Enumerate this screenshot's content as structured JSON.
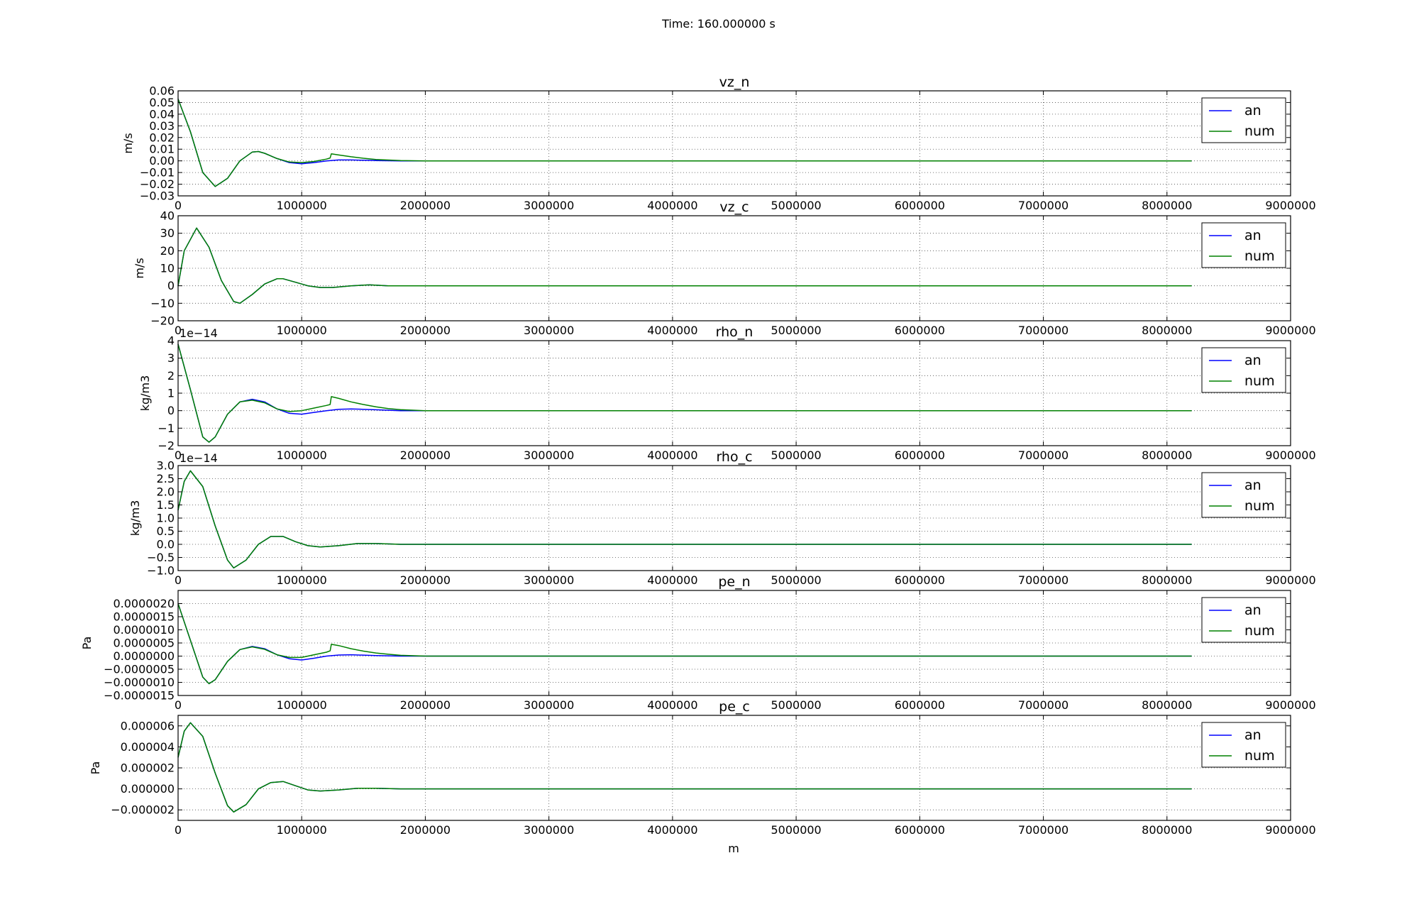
{
  "figure": {
    "suptitle": "Time: 160.000000 s",
    "xlabel": "m",
    "colors": {
      "an": "#0000ff",
      "num": "#008000"
    }
  },
  "chart_data": [
    {
      "type": "line",
      "title": "vz_n",
      "ylabel": "m/s",
      "offset_text": "",
      "xlim": [
        0,
        9000000
      ],
      "ylim": [
        -0.03,
        0.06
      ],
      "xticks": [
        0,
        1000000,
        2000000,
        3000000,
        4000000,
        5000000,
        6000000,
        7000000,
        8000000,
        9000000
      ],
      "xtick_labels": [
        "0",
        "1000000",
        "2000000",
        "3000000",
        "4000000",
        "5000000",
        "6000000",
        "7000000",
        "8000000",
        "9000000"
      ],
      "yticks": [
        -0.03,
        -0.02,
        -0.01,
        0.0,
        0.01,
        0.02,
        0.03,
        0.04,
        0.05,
        0.06
      ],
      "ytick_labels": [
        "−0.03",
        "−0.02",
        "−0.01",
        "0.00",
        "0.01",
        "0.02",
        "0.03",
        "0.04",
        "0.05",
        "0.06"
      ],
      "grid": true,
      "legend": "top-right",
      "series": [
        {
          "name": "an",
          "x": [
            0,
            100000,
            200000,
            300000,
            400000,
            500000,
            600000,
            650000,
            700000,
            800000,
            900000,
            1000000,
            1100000,
            1200000,
            1300000,
            1400000,
            1500000,
            1600000,
            1800000,
            2000000,
            8200000
          ],
          "y": [
            0.053,
            0.025,
            -0.01,
            -0.022,
            -0.015,
            0.0,
            0.0075,
            0.008,
            0.0065,
            0.002,
            -0.0015,
            -0.0025,
            -0.0015,
            0.0,
            0.0008,
            0.0008,
            0.0005,
            0.0002,
            0.0,
            0.0,
            0.0
          ]
        },
        {
          "name": "num",
          "x": [
            0,
            100000,
            200000,
            300000,
            400000,
            500000,
            600000,
            650000,
            700000,
            800000,
            900000,
            1000000,
            1100000,
            1200000,
            1230000,
            1240000,
            1300000,
            1400000,
            1500000,
            1600000,
            1800000,
            2000000,
            8200000
          ],
          "y": [
            0.053,
            0.025,
            -0.01,
            -0.022,
            -0.015,
            0.0,
            0.0075,
            0.008,
            0.0065,
            0.002,
            -0.001,
            -0.0015,
            -0.0005,
            0.0015,
            0.0025,
            0.006,
            0.005,
            0.0035,
            0.0022,
            0.0012,
            0.0003,
            0.0,
            0.0
          ]
        }
      ]
    },
    {
      "type": "line",
      "title": "vz_c",
      "ylabel": "m/s",
      "offset_text": "",
      "xlim": [
        0,
        9000000
      ],
      "ylim": [
        -20,
        40
      ],
      "xticks": [
        0,
        1000000,
        2000000,
        3000000,
        4000000,
        5000000,
        6000000,
        7000000,
        8000000,
        9000000
      ],
      "xtick_labels": [
        "0",
        "1000000",
        "2000000",
        "3000000",
        "4000000",
        "5000000",
        "6000000",
        "7000000",
        "8000000",
        "9000000"
      ],
      "yticks": [
        -20,
        -10,
        0,
        10,
        20,
        30,
        40
      ],
      "ytick_labels": [
        "−20",
        "−10",
        "0",
        "10",
        "20",
        "30",
        "40"
      ],
      "grid": true,
      "legend": "top-right",
      "series": [
        {
          "name": "an",
          "x": [
            0,
            50000,
            150000,
            250000,
            350000,
            450000,
            500000,
            600000,
            700000,
            800000,
            850000,
            950000,
            1050000,
            1150000,
            1250000,
            1400000,
            1550000,
            1700000,
            1900000,
            8200000
          ],
          "y": [
            0,
            20,
            33,
            22,
            3,
            -9,
            -10,
            -5,
            1,
            4,
            4,
            2,
            0,
            -1,
            -1,
            0,
            0.5,
            0,
            0,
            0
          ]
        },
        {
          "name": "num",
          "x": [
            0,
            50000,
            150000,
            250000,
            350000,
            450000,
            500000,
            600000,
            700000,
            800000,
            850000,
            950000,
            1050000,
            1150000,
            1250000,
            1400000,
            1550000,
            1700000,
            1900000,
            8200000
          ],
          "y": [
            0,
            20,
            33,
            22,
            3,
            -9,
            -10,
            -5,
            1,
            4,
            4,
            2,
            0,
            -1,
            -1,
            0,
            0.5,
            0,
            0,
            0
          ]
        }
      ]
    },
    {
      "type": "line",
      "title": "rho_n",
      "ylabel": "kg/m3",
      "offset_text": "1e−14",
      "xlim": [
        0,
        9000000
      ],
      "ylim": [
        -2,
        4
      ],
      "xticks": [
        0,
        1000000,
        2000000,
        3000000,
        4000000,
        5000000,
        6000000,
        7000000,
        8000000,
        9000000
      ],
      "xtick_labels": [
        "0",
        "1000000",
        "2000000",
        "3000000",
        "4000000",
        "5000000",
        "6000000",
        "7000000",
        "8000000",
        "9000000"
      ],
      "yticks": [
        -2,
        -1,
        0,
        1,
        2,
        3,
        4
      ],
      "ytick_labels": [
        "−2",
        "−1",
        "0",
        "1",
        "2",
        "3",
        "4"
      ],
      "grid": true,
      "legend": "top-right",
      "series": [
        {
          "name": "an",
          "x": [
            0,
            100000,
            200000,
            250000,
            300000,
            400000,
            500000,
            600000,
            700000,
            800000,
            900000,
            1000000,
            1100000,
            1200000,
            1300000,
            1400000,
            1600000,
            1800000,
            2000000,
            8200000
          ],
          "y": [
            3.8,
            1.2,
            -1.5,
            -1.8,
            -1.5,
            -0.2,
            0.5,
            0.65,
            0.5,
            0.1,
            -0.15,
            -0.2,
            -0.1,
            0.0,
            0.08,
            0.1,
            0.05,
            0.0,
            0.0,
            0.0
          ]
        },
        {
          "name": "num",
          "x": [
            0,
            100000,
            200000,
            250000,
            300000,
            400000,
            500000,
            600000,
            700000,
            800000,
            900000,
            1000000,
            1100000,
            1200000,
            1230000,
            1240000,
            1300000,
            1400000,
            1500000,
            1600000,
            1700000,
            1800000,
            2000000,
            8200000
          ],
          "y": [
            3.8,
            1.2,
            -1.5,
            -1.8,
            -1.5,
            -0.2,
            0.5,
            0.6,
            0.45,
            0.1,
            -0.05,
            0.0,
            0.15,
            0.3,
            0.35,
            0.8,
            0.7,
            0.5,
            0.35,
            0.22,
            0.12,
            0.06,
            0.0,
            0.0
          ]
        }
      ]
    },
    {
      "type": "line",
      "title": "rho_c",
      "ylabel": "kg/m3",
      "offset_text": "1e−14",
      "xlim": [
        0,
        9000000
      ],
      "ylim": [
        -1.0,
        3.0
      ],
      "xticks": [
        0,
        1000000,
        2000000,
        3000000,
        4000000,
        5000000,
        6000000,
        7000000,
        8000000,
        9000000
      ],
      "xtick_labels": [
        "0",
        "1000000",
        "2000000",
        "3000000",
        "4000000",
        "5000000",
        "6000000",
        "7000000",
        "8000000",
        "9000000"
      ],
      "yticks": [
        -1.0,
        -0.5,
        0.0,
        0.5,
        1.0,
        1.5,
        2.0,
        2.5,
        3.0
      ],
      "ytick_labels": [
        "−1.0",
        "−0.5",
        "0.0",
        "0.5",
        "1.0",
        "1.5",
        "2.0",
        "2.5",
        "3.0"
      ],
      "grid": true,
      "legend": "top-right",
      "series": [
        {
          "name": "an",
          "x": [
            0,
            50000,
            100000,
            200000,
            300000,
            400000,
            450000,
            550000,
            650000,
            750000,
            850000,
            950000,
            1050000,
            1150000,
            1300000,
            1450000,
            1600000,
            1800000,
            8200000
          ],
          "y": [
            1.3,
            2.4,
            2.8,
            2.2,
            0.7,
            -0.6,
            -0.9,
            -0.6,
            0.0,
            0.3,
            0.3,
            0.1,
            -0.05,
            -0.1,
            -0.05,
            0.03,
            0.03,
            0.0,
            0.0
          ]
        },
        {
          "name": "num",
          "x": [
            0,
            50000,
            100000,
            200000,
            300000,
            400000,
            450000,
            550000,
            650000,
            750000,
            850000,
            950000,
            1050000,
            1150000,
            1300000,
            1450000,
            1600000,
            1800000,
            8200000
          ],
          "y": [
            1.3,
            2.4,
            2.8,
            2.2,
            0.7,
            -0.6,
            -0.9,
            -0.6,
            0.0,
            0.3,
            0.3,
            0.1,
            -0.05,
            -0.1,
            -0.05,
            0.03,
            0.03,
            0.0,
            0.0
          ]
        }
      ]
    },
    {
      "type": "line",
      "title": "pe_n",
      "ylabel": "Pa",
      "offset_text": "",
      "xlim": [
        0,
        9000000
      ],
      "ylim": [
        -1.5e-06,
        2.5e-06
      ],
      "xticks": [
        0,
        1000000,
        2000000,
        3000000,
        4000000,
        5000000,
        6000000,
        7000000,
        8000000,
        9000000
      ],
      "xtick_labels": [
        "0",
        "1000000",
        "2000000",
        "3000000",
        "4000000",
        "5000000",
        "6000000",
        "7000000",
        "8000000",
        "9000000"
      ],
      "yticks": [
        -1.5e-06,
        -1e-06,
        -5e-07,
        0.0,
        5e-07,
        1e-06,
        1.5e-06,
        2e-06
      ],
      "ytick_labels": [
        "−0.0000015",
        "−0.0000010",
        "−0.0000005",
        "0.0000000",
        "0.0000005",
        "0.0000010",
        "0.0000015",
        "0.0000020"
      ],
      "grid": true,
      "legend": "top-right",
      "series": [
        {
          "name": "an",
          "x": [
            0,
            100000,
            200000,
            250000,
            300000,
            400000,
            500000,
            600000,
            700000,
            800000,
            900000,
            1000000,
            1100000,
            1200000,
            1300000,
            1400000,
            1600000,
            1800000,
            2000000,
            8200000
          ],
          "y": [
            2e-06,
            6e-07,
            -8e-07,
            -1.05e-06,
            -9e-07,
            -2e-07,
            2.5e-07,
            3.7e-07,
            2.8e-07,
            5e-08,
            -1e-07,
            -1.5e-07,
            -8e-08,
            0.0,
            4e-08,
            5e-08,
            2e-08,
            0.0,
            0.0,
            0.0
          ]
        },
        {
          "name": "num",
          "x": [
            0,
            100000,
            200000,
            250000,
            300000,
            400000,
            500000,
            600000,
            700000,
            800000,
            900000,
            1000000,
            1100000,
            1200000,
            1230000,
            1240000,
            1300000,
            1400000,
            1500000,
            1600000,
            1700000,
            1800000,
            2000000,
            8200000
          ],
          "y": [
            2e-06,
            6e-07,
            -8e-07,
            -1.05e-06,
            -9e-07,
            -2e-07,
            2.5e-07,
            3.5e-07,
            2.6e-07,
            5e-08,
            -5e-08,
            -5e-08,
            5e-08,
            1.5e-07,
            2e-07,
            4.5e-07,
            4e-07,
            2.8e-07,
            1.9e-07,
            1.2e-07,
            7e-08,
            3e-08,
            0.0,
            0.0
          ]
        }
      ]
    },
    {
      "type": "line",
      "title": "pe_c",
      "ylabel": "Pa",
      "offset_text": "",
      "xlim": [
        0,
        9000000
      ],
      "ylim": [
        -3e-06,
        7e-06
      ],
      "xticks": [
        0,
        1000000,
        2000000,
        3000000,
        4000000,
        5000000,
        6000000,
        7000000,
        8000000,
        9000000
      ],
      "xtick_labels": [
        "0",
        "1000000",
        "2000000",
        "3000000",
        "4000000",
        "5000000",
        "6000000",
        "7000000",
        "8000000",
        "9000000"
      ],
      "yticks": [
        -2e-06,
        0.0,
        2e-06,
        4e-06,
        6e-06
      ],
      "ytick_labels": [
        "−0.000002",
        "0.000000",
        "0.000002",
        "0.000004",
        "0.000006"
      ],
      "grid": true,
      "legend": "top-right",
      "series": [
        {
          "name": "an",
          "x": [
            0,
            50000,
            100000,
            200000,
            300000,
            400000,
            450000,
            550000,
            650000,
            750000,
            850000,
            950000,
            1050000,
            1150000,
            1300000,
            1450000,
            1600000,
            1800000,
            8200000
          ],
          "y": [
            3e-06,
            5.5e-06,
            6.3e-06,
            5e-06,
            1.5e-06,
            -1.6e-06,
            -2.2e-06,
            -1.5e-06,
            0.0,
            6e-07,
            7e-07,
            3e-07,
            -1e-07,
            -2e-07,
            -1e-07,
            6e-08,
            6e-08,
            0.0,
            0.0
          ]
        },
        {
          "name": "num",
          "x": [
            0,
            50000,
            100000,
            200000,
            300000,
            400000,
            450000,
            550000,
            650000,
            750000,
            850000,
            950000,
            1050000,
            1150000,
            1300000,
            1450000,
            1600000,
            1800000,
            8200000
          ],
          "y": [
            3e-06,
            5.5e-06,
            6.3e-06,
            5e-06,
            1.5e-06,
            -1.6e-06,
            -2.2e-06,
            -1.5e-06,
            0.0,
            6e-07,
            7e-07,
            3e-07,
            -1e-07,
            -2e-07,
            -1e-07,
            6e-08,
            6e-08,
            0.0,
            0.0
          ]
        }
      ]
    }
  ]
}
